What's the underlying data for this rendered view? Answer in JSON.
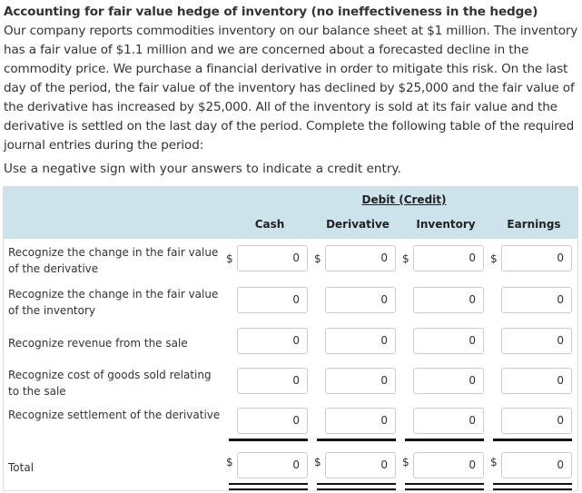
{
  "title": "Accounting for fair value hedge of inventory (no ineffectiveness in the hedge)",
  "body": "Our company reports commodities inventory on our balance sheet at $1 million. The inventory has a fair value of $1.1 million and we are concerned about a forecasted decline in the commodity price. We purchase a financial derivative in order to mitigate this risk. On the last day of the period, the fair value of the inventory has declined by $25,000 and the fair value of the derivative has increased by $25,000. All of the inventory is sold at its fair value and the derivative is settled on the last day of the period. Complete the following table of the required journal entries during the period:",
  "note": "Use a negative sign with your answers to indicate a credit entry.",
  "table": {
    "group_header": "Debit (Credit)",
    "columns": [
      "Cash",
      "Derivative",
      "Inventory",
      "Earnings"
    ],
    "currency": "$",
    "rows": [
      {
        "label": "Recognize the change in the fair value of the derivative",
        "values": [
          "0",
          "0",
          "0",
          "0"
        ],
        "dollar": true
      },
      {
        "label": "Recognize the change in the fair value of the inventory",
        "values": [
          "0",
          "0",
          "0",
          "0"
        ],
        "dollar": false
      },
      {
        "label": "Recognize revenue from the sale",
        "values": [
          "0",
          "0",
          "0",
          "0"
        ],
        "dollar": false
      },
      {
        "label": "Recognize cost of goods sold relating to the sale",
        "values": [
          "0",
          "0",
          "0",
          "0"
        ],
        "dollar": false
      },
      {
        "label": "Recognize settlement of the derivative",
        "values": [
          "0",
          "0",
          "0",
          "0"
        ],
        "dollar": false
      },
      {
        "label": "Total",
        "values": [
          "0",
          "0",
          "0",
          "0"
        ],
        "dollar": true
      }
    ]
  }
}
